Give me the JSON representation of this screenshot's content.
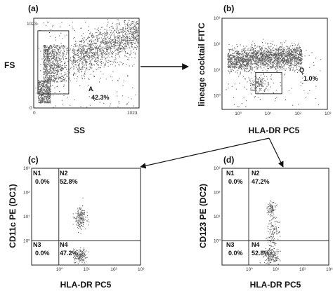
{
  "colors": {
    "dot": "#5a5a5a",
    "frame": "#222222",
    "arrow": "#111111"
  },
  "panels": [
    {
      "id": "a",
      "label": "(a)",
      "chart_data": {
        "type": "scatter",
        "xlabel": "SS",
        "ylabel": "FS",
        "x_scale": "linear",
        "y_scale": "linear",
        "xlim": [
          0,
          1023
        ],
        "ylim": [
          0,
          1023
        ],
        "x_ticks": [
          "0",
          "1023"
        ],
        "y_ticks": [
          "0",
          "1023"
        ],
        "gate": {
          "name": "A",
          "percent": "42.3%",
          "x_range": [
            40,
            340
          ],
          "y_range": [
            160,
            880
          ]
        },
        "point_count": 2600
      }
    },
    {
      "id": "b",
      "label": "(b)",
      "chart_data": {
        "type": "scatter",
        "xlabel": "HLA-DR PC5",
        "ylabel": "lineage cocktail FITC",
        "x_scale": "log",
        "y_scale": "log",
        "xlim": [
          0.3,
          1000
        ],
        "ylim": [
          0.3,
          1000
        ],
        "x_ticks": [
          "10⁰",
          "10¹",
          "10²",
          "10³"
        ],
        "y_ticks": [
          "10⁰",
          "10¹",
          "10²",
          "10³"
        ],
        "gate": {
          "name": "Q",
          "percent": "1.0%",
          "x_range": [
            4,
            30
          ],
          "y_range": [
            1.2,
            8
          ]
        },
        "point_count": 2100
      }
    },
    {
      "id": "c",
      "label": "(c)",
      "chart_data": {
        "type": "scatter",
        "xlabel": "HLA-DR PC5",
        "ylabel": "CD11c PE (DC1)",
        "x_scale": "log",
        "y_scale": "log",
        "xlim": [
          0.1,
          1000
        ],
        "ylim": [
          0.1,
          1000
        ],
        "x_ticks": [
          "10⁰",
          "10¹",
          "10²",
          "10³"
        ],
        "y_ticks": [
          "10⁰",
          "10¹",
          "10²",
          "10³"
        ],
        "quadrants": [
          {
            "name": "N1",
            "percent": "0.0%"
          },
          {
            "name": "N2",
            "percent": "52.8%"
          },
          {
            "name": "N3",
            "percent": "0.0%"
          },
          {
            "name": "N4",
            "percent": "47.2%"
          }
        ],
        "quadrant_split": {
          "x": 1,
          "y": 1
        }
      }
    },
    {
      "id": "d",
      "label": "(d)",
      "chart_data": {
        "type": "scatter",
        "xlabel": "HLA-DR PC5",
        "ylabel": "CD123 PE (DC2)",
        "x_scale": "log",
        "y_scale": "log",
        "xlim": [
          0.1,
          1000
        ],
        "ylim": [
          0.1,
          1000
        ],
        "x_ticks": [
          "10⁰",
          "10¹",
          "10²",
          "10³"
        ],
        "y_ticks": [
          "10⁰",
          "10¹",
          "10²",
          "10³"
        ],
        "quadrants": [
          {
            "name": "N1",
            "percent": "0.0%"
          },
          {
            "name": "N2",
            "percent": "47.2%"
          },
          {
            "name": "N3",
            "percent": "0.0%"
          },
          {
            "name": "N4",
            "percent": "52.8%"
          }
        ],
        "quadrant_split": {
          "x": 1,
          "y": 1
        }
      }
    }
  ]
}
